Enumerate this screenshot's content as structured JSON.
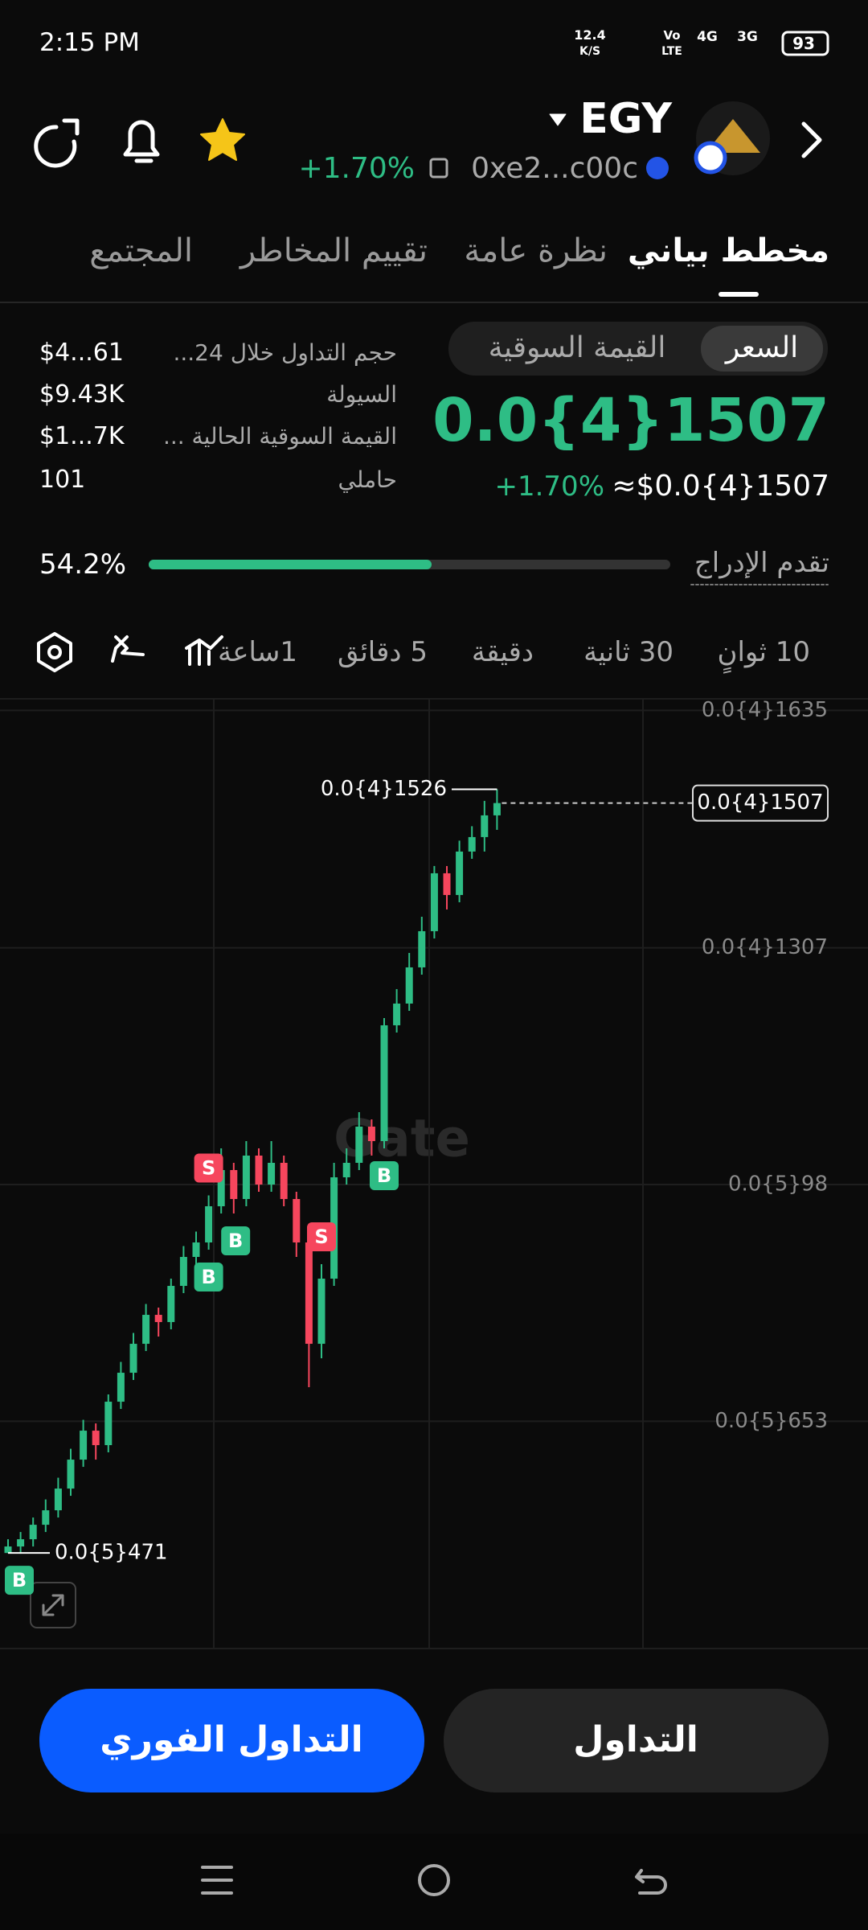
{
  "status_bar": {
    "time": "2:15 PM",
    "net_speed": "12.4",
    "net_unit": "K/S",
    "signal_labels": [
      "Vo",
      "LTE",
      "4G",
      "3G"
    ],
    "battery": "93"
  },
  "header": {
    "token": "EGY",
    "change": "+1.70%",
    "address": "0xe2...c00c"
  },
  "tabs": [
    "مخطط بياني",
    "نظرة عامة",
    "تقييم المخاطر",
    "المجتمع"
  ],
  "price_panel": {
    "toggle": [
      "السعر",
      "القيمة السوقية"
    ],
    "price": "0.0{4}1507",
    "change": "+1.70%",
    "usd_price": "≈$0.0{4}1507"
  },
  "stats": [
    {
      "label": "حجم التداول خلال 24...",
      "value": "$4...61"
    },
    {
      "label": "السيولة",
      "value": "$9.43K"
    },
    {
      "label": "القيمة السوقية الحالية ...",
      "value": "$1...7K"
    },
    {
      "label": "حاملي",
      "value": "101"
    }
  ],
  "listing_progress": {
    "label": "تقدم الإدراج",
    "value": 54.2,
    "value_label": "54.2%"
  },
  "intervals": [
    "10 ثوانٍ",
    "30 ثانية",
    "دقيقة",
    "5 دقائق",
    "1ساعة"
  ],
  "chart_data": {
    "type": "candlestick",
    "watermark": "Gate",
    "ylim": [
      3.39e-06,
      1.651e-05
    ],
    "yticks": [
      {
        "value": 1.635e-05,
        "label": "0.0{4}1635"
      },
      {
        "value": 1.307e-05,
        "label": "0.0{4}1307"
      },
      {
        "value": 9.8e-06,
        "label": "0.0{5}98"
      },
      {
        "value": 6.53e-06,
        "label": "0.0{5}653"
      }
    ],
    "grid": true,
    "colors": {
      "up": "#2ebd85",
      "down": "#f6465d"
    },
    "open": [
      4.71e-06,
      4.8e-06,
      4.9e-06,
      5.1e-06,
      5.3e-06,
      5.6e-06,
      6e-06,
      6.4e-06,
      6.2e-06,
      6.8e-06,
      7.2e-06,
      7.6e-06,
      8e-06,
      7.9e-06,
      8.4e-06,
      8.8e-06,
      9e-06,
      9.5e-06,
      1e-05,
      9.6e-06,
      1.02e-05,
      9.8e-06,
      1.01e-05,
      9.6e-06,
      9e-06,
      7.6e-06,
      8.5e-06,
      9.9e-06,
      1.01e-05,
      1.06e-05,
      1.04e-05,
      1.2e-05,
      1.23e-05,
      1.28e-05,
      1.33e-05,
      1.41e-05,
      1.38e-05,
      1.44e-05,
      1.46e-05,
      1.49e-05
    ],
    "high": [
      4.9e-06,
      5e-06,
      5.2e-06,
      5.45e-06,
      5.75e-06,
      6.15e-06,
      6.55e-06,
      6.5e-06,
      6.9e-06,
      7.35e-06,
      7.75e-06,
      8.15e-06,
      8.1e-06,
      8.5e-06,
      8.95e-06,
      9.15e-06,
      9.65e-06,
      1.03e-05,
      1.01e-05,
      1.04e-05,
      1.03e-05,
      1.04e-05,
      1.02e-05,
      9.7e-06,
      9.1e-06,
      8.7e-06,
      1.01e-05,
      1.03e-05,
      1.08e-05,
      1.07e-05,
      1.21e-05,
      1.25e-05,
      1.3e-05,
      1.35e-05,
      1.42e-05,
      1.42e-05,
      1.455e-05,
      1.475e-05,
      1.51e-05,
      1.526e-05
    ],
    "low": [
      4.71e-06,
      4.7e-06,
      4.8e-06,
      5e-06,
      5.2e-06,
      5.5e-06,
      5.9e-06,
      6e-06,
      6.1e-06,
      6.7e-06,
      7.1e-06,
      7.5e-06,
      7.7e-06,
      7.8e-06,
      8.3e-06,
      8.7e-06,
      8.9e-06,
      9.4e-06,
      9.4e-06,
      9.5e-06,
      9.7e-06,
      9.7e-06,
      9.5e-06,
      8.8e-06,
      7e-06,
      7.4e-06,
      8.4e-06,
      9.8e-06,
      1e-05,
      1.02e-05,
      1.03e-05,
      1.19e-05,
      1.22e-05,
      1.27e-05,
      1.32e-05,
      1.36e-05,
      1.37e-05,
      1.43e-05,
      1.44e-05,
      1.47e-05
    ],
    "close": [
      4.8e-06,
      4.9e-06,
      5.1e-06,
      5.3e-06,
      5.6e-06,
      6e-06,
      6.4e-06,
      6.2e-06,
      6.8e-06,
      7.2e-06,
      7.6e-06,
      8e-06,
      7.9e-06,
      8.4e-06,
      8.8e-06,
      9e-06,
      9.5e-06,
      1e-05,
      9.6e-06,
      1.02e-05,
      9.8e-06,
      1.01e-05,
      9.6e-06,
      9e-06,
      7.6e-06,
      8.5e-06,
      9.9e-06,
      1.01e-05,
      1.06e-05,
      1.04e-05,
      1.2e-05,
      1.23e-05,
      1.28e-05,
      1.33e-05,
      1.41e-05,
      1.38e-05,
      1.44e-05,
      1.46e-05,
      1.49e-05,
      1.507e-05
    ],
    "last_price": {
      "value": 1.507e-05,
      "label": "0.0{4}1507"
    },
    "high_label": {
      "value": 1.526e-05,
      "label": "0.0{4}1526"
    },
    "low_label": {
      "value": 4.71e-06,
      "label": "0.0{5}471"
    },
    "trade_markers": [
      "B",
      "B",
      "B",
      "S",
      "S",
      "B"
    ]
  },
  "buttons": [
    "التداول",
    "التداول الفوري"
  ]
}
